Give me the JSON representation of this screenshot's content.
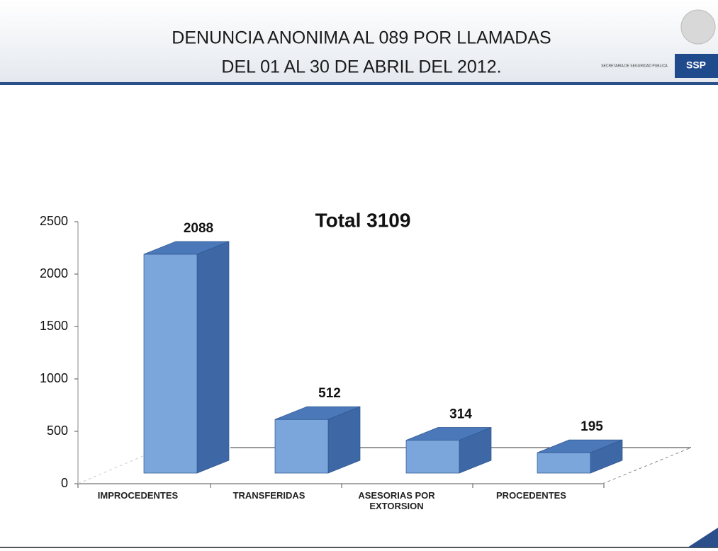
{
  "header": {
    "title_line1": "DENUNCIA ANONIMA AL 089 POR LLAMADAS",
    "title_line2": "DEL 01 AL 30 DE ABRIL DEL 2012.",
    "agency": "SECRETARIA DE SEGURIDAD PUBLICA",
    "logo": "SSP"
  },
  "chart_data": {
    "type": "bar3d",
    "annotation": "Total 3109",
    "categories": [
      "IMPROCEDENTES",
      "TRANSFERIDAS",
      "ASESORIAS POR EXTORSION",
      "PROCEDENTES"
    ],
    "values": [
      2088,
      512,
      314,
      195
    ],
    "color": "#7aa6db",
    "ylim": [
      0,
      2500
    ],
    "yticks": [
      0,
      500,
      1000,
      1500,
      2000,
      2500
    ]
  }
}
